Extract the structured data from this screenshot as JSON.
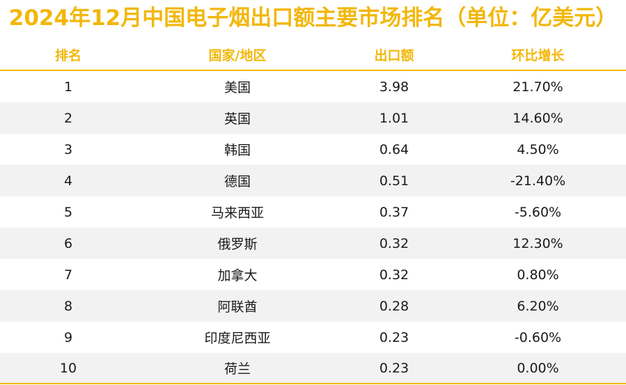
{
  "title": "2024年12月中国电子烟出口额主要市场排名（单位：亿美元）",
  "colors": {
    "accent": "#F2B70A",
    "alt_row": "#f2f2f2",
    "text": "#1a1a1a"
  },
  "chart_data": {
    "type": "table",
    "title": "2024年12月中国电子烟出口额主要市场排名（单位：亿美元）",
    "columns": [
      "排名",
      "国家/地区",
      "出口额",
      "环比增长"
    ],
    "rows": [
      [
        "1",
        "美国",
        "3.98",
        "21.70%"
      ],
      [
        "2",
        "英国",
        "1.01",
        "14.60%"
      ],
      [
        "3",
        "韩国",
        "0.64",
        "4.50%"
      ],
      [
        "4",
        "德国",
        "0.51",
        "-21.40%"
      ],
      [
        "5",
        "马来西亚",
        "0.37",
        "-5.60%"
      ],
      [
        "6",
        "俄罗斯",
        "0.32",
        "12.30%"
      ],
      [
        "7",
        "加拿大",
        "0.32",
        "0.80%"
      ],
      [
        "8",
        "阿联酋",
        "0.28",
        "6.20%"
      ],
      [
        "9",
        "印度尼西亚",
        "0.23",
        "-0.60%"
      ],
      [
        "10",
        "荷兰",
        "0.23",
        "0.00%"
      ]
    ]
  }
}
